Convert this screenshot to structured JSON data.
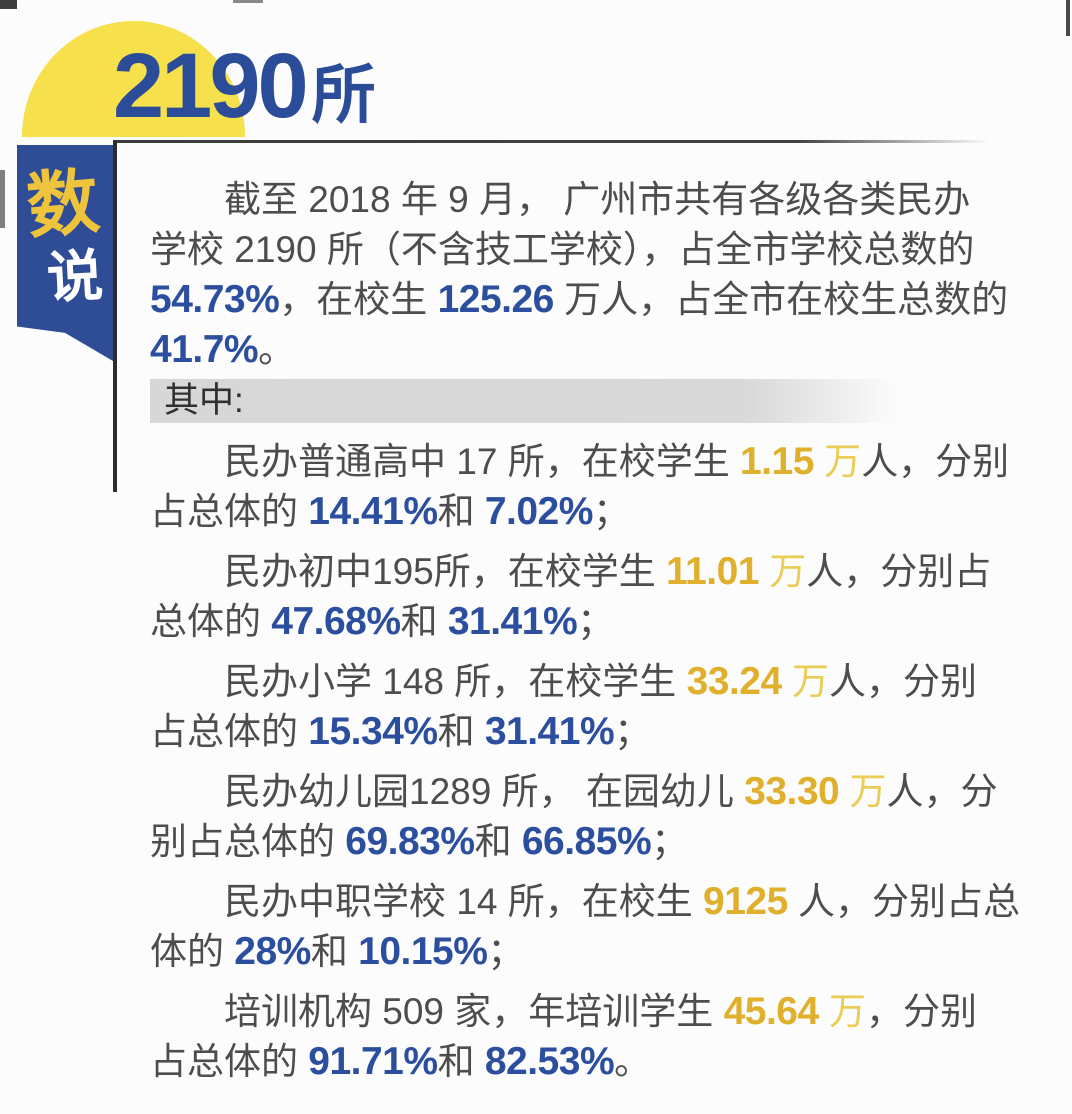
{
  "colors": {
    "dome_yellow": "#f6e04c",
    "headline_blue": "#2b4c98",
    "ribbon_blue": "#2e4d96",
    "ribbon_char_yellow": "#eec43d",
    "ribbon_char_white": "#ffffff",
    "body_text": "#4d4d4d",
    "number_blue": "#2b4f9e",
    "number_yellow": "#e0b02c",
    "bar_gray": "#d8d8d8"
  },
  "header": {
    "big_number": "2190",
    "big_unit": "所"
  },
  "ribbon": {
    "char_top": "数",
    "char_bottom": "说"
  },
  "intro": {
    "lines": [
      [
        {
          "t": "截至 2018 年 9 月， 广州市共有各级各类民办",
          "s": "n"
        }
      ],
      [
        {
          "t": "学校 2190 所（不含技工学校），占全市学校总数的",
          "s": "n"
        }
      ],
      [
        {
          "t": "54.73%",
          "s": "b"
        },
        {
          "t": "，在校生 ",
          "s": "n"
        },
        {
          "t": "125.26",
          "s": "b"
        },
        {
          "t": " 万人，占全市在校生总数的",
          "s": "n"
        }
      ],
      [
        {
          "t": "41.7%",
          "s": "b"
        },
        {
          "t": "。",
          "s": "n"
        }
      ]
    ]
  },
  "section": {
    "label": "其中:"
  },
  "items": [
    {
      "lines": [
        [
          {
            "t": "民办普通高中 17 所，在校学生 ",
            "s": "n"
          },
          {
            "t": "1.15",
            "s": "y"
          },
          {
            "t": " 万",
            "s": "y2"
          },
          {
            "t": "人，分别",
            "s": "n"
          }
        ],
        [
          {
            "t": "占总体的 ",
            "s": "n"
          },
          {
            "t": "14.41%",
            "s": "b"
          },
          {
            "t": "和 ",
            "s": "n"
          },
          {
            "t": "7.02%",
            "s": "b"
          },
          {
            "t": "；",
            "s": "n"
          }
        ]
      ]
    },
    {
      "lines": [
        [
          {
            "t": "民办初中195所，在校学生 ",
            "s": "n"
          },
          {
            "t": "11.01",
            "s": "y"
          },
          {
            "t": " 万",
            "s": "y2"
          },
          {
            "t": "人，分别占",
            "s": "n"
          }
        ],
        [
          {
            "t": "总体的 ",
            "s": "n"
          },
          {
            "t": "47.68%",
            "s": "b"
          },
          {
            "t": "和 ",
            "s": "n"
          },
          {
            "t": "31.41%",
            "s": "b"
          },
          {
            "t": "；",
            "s": "n"
          }
        ]
      ]
    },
    {
      "lines": [
        [
          {
            "t": "民办小学 148 所，在校学生 ",
            "s": "n"
          },
          {
            "t": "33.24",
            "s": "y"
          },
          {
            "t": " 万",
            "s": "y2"
          },
          {
            "t": "人，分别",
            "s": "n"
          }
        ],
        [
          {
            "t": "占总体的 ",
            "s": "n"
          },
          {
            "t": "15.34%",
            "s": "b"
          },
          {
            "t": "和 ",
            "s": "n"
          },
          {
            "t": "31.41%",
            "s": "b"
          },
          {
            "t": "；",
            "s": "n"
          }
        ]
      ]
    },
    {
      "lines": [
        [
          {
            "t": "民办幼儿园1289 所， 在园幼儿 ",
            "s": "n"
          },
          {
            "t": "33.30",
            "s": "y"
          },
          {
            "t": " 万",
            "s": "y2"
          },
          {
            "t": "人，分",
            "s": "n"
          }
        ],
        [
          {
            "t": "别占总体的 ",
            "s": "n"
          },
          {
            "t": "69.83%",
            "s": "b"
          },
          {
            "t": "和 ",
            "s": "n"
          },
          {
            "t": "66.85%",
            "s": "b"
          },
          {
            "t": "；",
            "s": "n"
          }
        ]
      ]
    },
    {
      "lines": [
        [
          {
            "t": "民办中职学校 14 所，在校生 ",
            "s": "n"
          },
          {
            "t": "9125",
            "s": "y"
          },
          {
            "t": " 人，分别占总",
            "s": "n"
          }
        ],
        [
          {
            "t": "体的 ",
            "s": "n"
          },
          {
            "t": "28%",
            "s": "b"
          },
          {
            "t": "和 ",
            "s": "n"
          },
          {
            "t": "10.15%",
            "s": "b"
          },
          {
            "t": "；",
            "s": "n"
          }
        ]
      ]
    },
    {
      "lines": [
        [
          {
            "t": "培训机构 509 家，年培训学生 ",
            "s": "n"
          },
          {
            "t": "45.64",
            "s": "y"
          },
          {
            "t": " 万",
            "s": "y2"
          },
          {
            "t": "，分别",
            "s": "n"
          }
        ],
        [
          {
            "t": "占总体的 ",
            "s": "n"
          },
          {
            "t": "91.71%",
            "s": "b"
          },
          {
            "t": "和 ",
            "s": "n"
          },
          {
            "t": "82.53%",
            "s": "b"
          },
          {
            "t": "。",
            "s": "n"
          }
        ]
      ]
    }
  ]
}
